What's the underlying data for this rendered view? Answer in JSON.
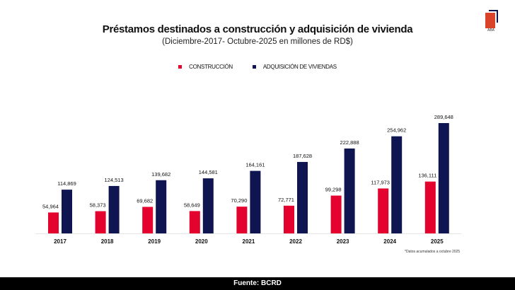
{
  "chart_data": {
    "type": "bar",
    "title": "Préstamos destinados a construcción y adquisición de vivienda",
    "subtitle": "(Diciembre-2017- Octubre-2025 en millones de RD$)",
    "categories": [
      "2017",
      "2018",
      "2019",
      "2020",
      "2021",
      "2022",
      "2023",
      "2024",
      "2025"
    ],
    "series": [
      {
        "name": "CONSTRUCCIÓN",
        "color": "#e4032e",
        "values": [
          54964,
          58373,
          69682,
          58649,
          70290,
          72771,
          99298,
          117973,
          136111
        ],
        "labels": [
          "54,964",
          "58,373",
          "69,682",
          "58,649",
          "70,290",
          "72,771",
          "99,298",
          "117,973",
          "136,111"
        ]
      },
      {
        "name": "ADQUISICIÓN DE VIVIENDAS",
        "color": "#0e1550",
        "values": [
          114869,
          124513,
          139682,
          144581,
          164161,
          187628,
          222888,
          254962,
          289648
        ],
        "labels": [
          "114,869",
          "124,513",
          "139,682",
          "144,581",
          "164,161",
          "187,628",
          "222,888",
          "254,962",
          "289,648"
        ]
      }
    ],
    "ylim": [
      0,
      300000
    ],
    "grid": false,
    "legend_placement": "top-center",
    "note": "*Datos acumulados a octubre 2025"
  },
  "logo": {
    "text": "ABA"
  },
  "footer": {
    "source": "Fuente: BCRD"
  }
}
